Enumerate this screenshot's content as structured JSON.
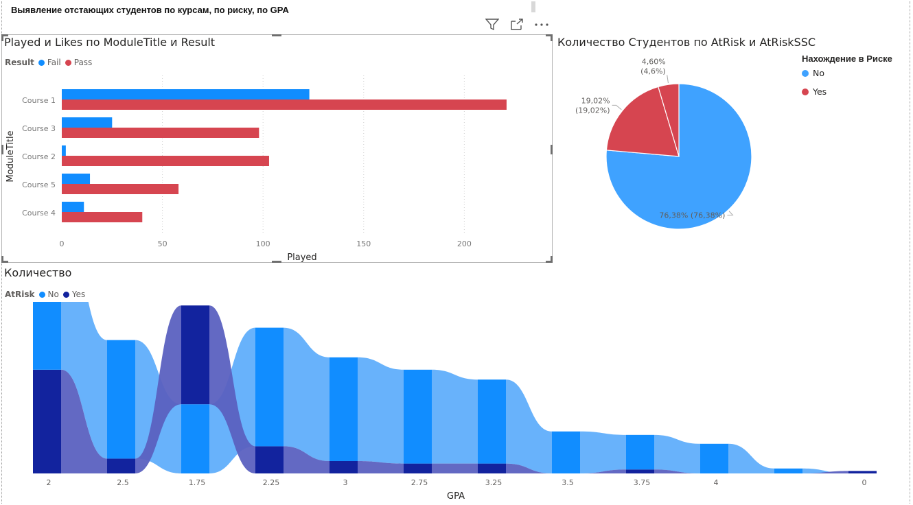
{
  "page": {
    "title": "Выявление отстающих студентов по курсам, по риску, по GPA"
  },
  "header_icons": [
    "filter-icon",
    "focus-mode-icon",
    "more-options-icon"
  ],
  "chart_data": [
    {
      "type": "bar",
      "orientation": "horizontal",
      "title": "Played и Likes по ModuleTitle и Result",
      "legend_title": "Result",
      "categories": [
        "Course 1",
        "Course 3",
        "Course 2",
        "Course 5",
        "Course 4"
      ],
      "series": [
        {
          "name": "Fail",
          "color": "#118dff",
          "values": [
            123,
            25,
            2,
            14,
            11
          ]
        },
        {
          "name": "Pass",
          "color": "#d64550",
          "values": [
            221,
            98,
            103,
            58,
            40
          ]
        }
      ],
      "xlabel": "Played",
      "ylabel": "ModuleTitle",
      "xlim": [
        0,
        230
      ],
      "xticks": [
        0,
        50,
        100,
        150,
        200
      ],
      "legend_position": "top-left",
      "grid": "vertical-dotted"
    },
    {
      "type": "pie",
      "title": "Количество Студентов по AtRisk и AtRiskSSC",
      "legend_title": "Нахождение в Риске",
      "legend_position": "right",
      "slices": [
        {
          "name": "No",
          "value": 76.38,
          "color": "#3fa2ff",
          "label": "76,38% (76,38%)"
        },
        {
          "name": "Yes",
          "value": 19.02,
          "color": "#d64550",
          "label_line1": "19,02%",
          "label_line2": "(19,02%)"
        },
        {
          "name": "Yes",
          "value": 4.6,
          "color": "#d64550",
          "label_line1": "4,60%",
          "label_line2": "(4,6%)"
        }
      ]
    },
    {
      "type": "area",
      "subtype": "ribbon",
      "title": "Количество",
      "legend_title": "AtRisk",
      "legend_position": "top-left",
      "categories": [
        "2",
        "2.5",
        "1.75",
        "2.25",
        "3",
        "2.75",
        "3.25",
        "3.5",
        "3.75",
        "4",
        "",
        "0"
      ],
      "series": [
        {
          "name": "No",
          "color": "#118dff",
          "values": [
            3.0,
            2.4,
            1.4,
            2.4,
            2.1,
            1.9,
            1.7,
            0.85,
            0.7,
            0.6,
            0.1,
            0
          ]
        },
        {
          "name": "Yes",
          "color": "#12239e",
          "values": [
            2.1,
            0.3,
            2.0,
            0.55,
            0.25,
            0.2,
            0.2,
            0,
            0.08,
            0,
            0,
            0.05
          ]
        }
      ],
      "xlabel": "GPA"
    }
  ]
}
